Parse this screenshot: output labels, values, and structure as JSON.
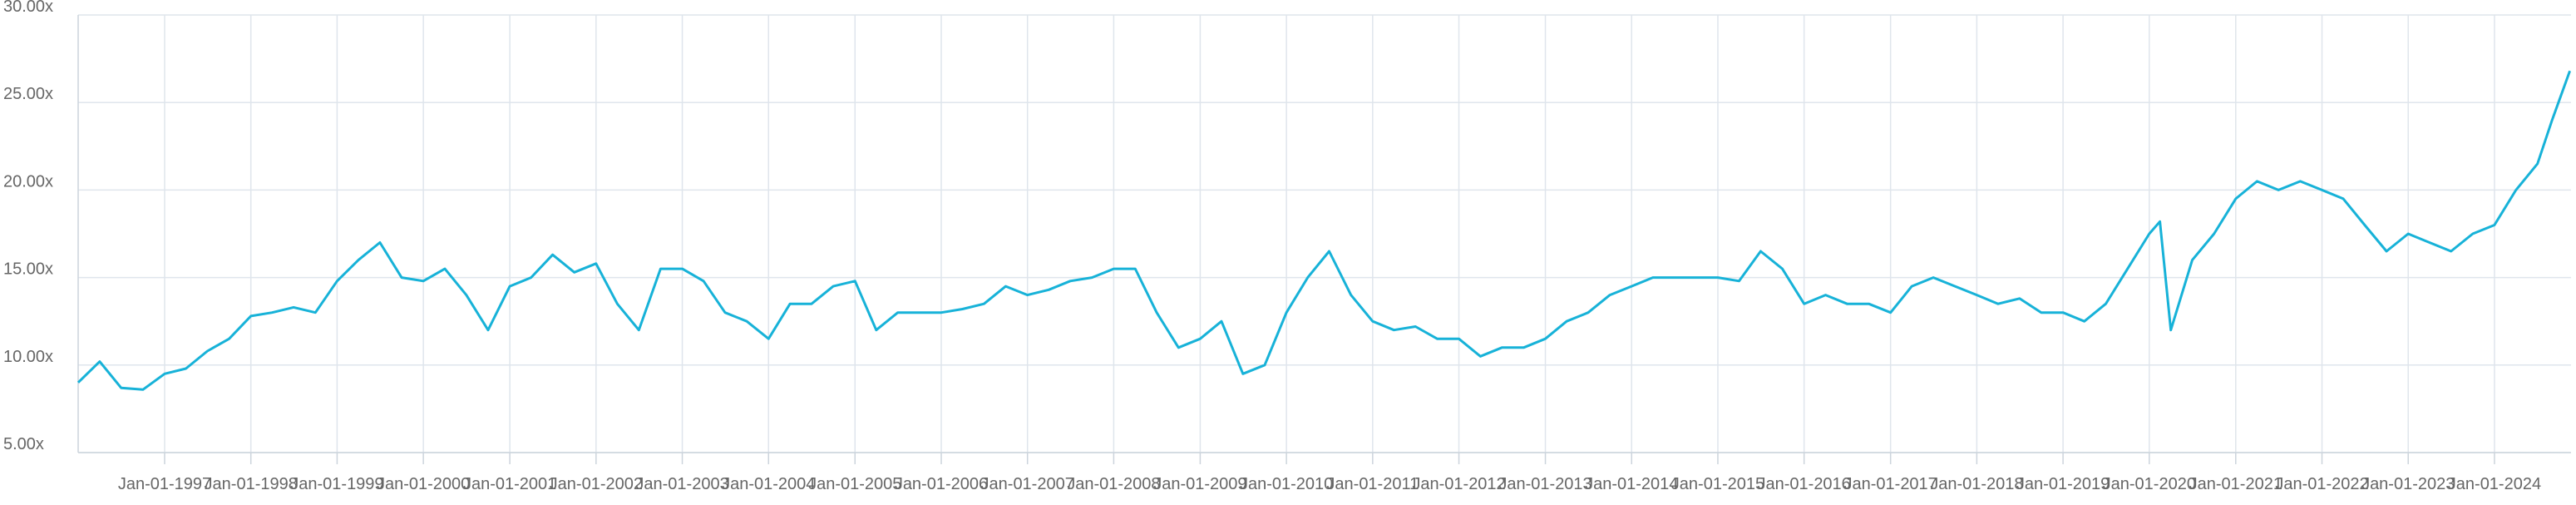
{
  "chart_data": {
    "type": "line",
    "color": "#17b2d8",
    "grid": true,
    "xlim": [
      "1996-01-01",
      "2024-11-20"
    ],
    "ylim": [
      5,
      30
    ],
    "yticks": [
      {
        "value": 5,
        "label": "5.00x"
      },
      {
        "value": 10,
        "label": "10.00x"
      },
      {
        "value": 15,
        "label": "15.00x"
      },
      {
        "value": 20,
        "label": "20.00x"
      },
      {
        "value": 25,
        "label": "25.00x"
      },
      {
        "value": 30,
        "label": "30.00x"
      }
    ],
    "xticks": [
      {
        "value": "1997-01-01",
        "label": "Jan-01-1997"
      },
      {
        "value": "1998-01-01",
        "label": "Jan-01-1998"
      },
      {
        "value": "1999-01-01",
        "label": "Jan-01-1999"
      },
      {
        "value": "2000-01-01",
        "label": "Jan-01-2000"
      },
      {
        "value": "2001-01-01",
        "label": "Jan-01-2001"
      },
      {
        "value": "2002-01-01",
        "label": "Jan-01-2002"
      },
      {
        "value": "2003-01-01",
        "label": "Jan-01-2003"
      },
      {
        "value": "2004-01-01",
        "label": "Jan-01-2004"
      },
      {
        "value": "2005-01-01",
        "label": "Jan-01-2005"
      },
      {
        "value": "2006-01-01",
        "label": "Jan-01-2006"
      },
      {
        "value": "2007-01-01",
        "label": "Jan-01-2007"
      },
      {
        "value": "2008-01-01",
        "label": "Jan-01-2008"
      },
      {
        "value": "2009-01-01",
        "label": "Jan-01-2009"
      },
      {
        "value": "2010-01-01",
        "label": "Jan-01-2010"
      },
      {
        "value": "2011-01-01",
        "label": "Jan-01-2011"
      },
      {
        "value": "2012-01-01",
        "label": "Jan-01-2012"
      },
      {
        "value": "2013-01-01",
        "label": "Jan-01-2013"
      },
      {
        "value": "2014-01-01",
        "label": "Jan-01-2014"
      },
      {
        "value": "2015-01-01",
        "label": "Jan-01-2015"
      },
      {
        "value": "2016-01-01",
        "label": "Jan-01-2016"
      },
      {
        "value": "2017-01-01",
        "label": "Jan-01-2017"
      },
      {
        "value": "2018-01-01",
        "label": "Jan-01-2018"
      },
      {
        "value": "2019-01-01",
        "label": "Jan-01-2019"
      },
      {
        "value": "2020-01-01",
        "label": "Jan-01-2020"
      },
      {
        "value": "2021-01-01",
        "label": "Jan-01-2021"
      },
      {
        "value": "2022-01-01",
        "label": "Jan-01-2022"
      },
      {
        "value": "2023-01-01",
        "label": "Jan-01-2023"
      },
      {
        "value": "2024-01-01",
        "label": "Jan-01-2024"
      }
    ],
    "x": [
      "1996-01-01",
      "1996-04-01",
      "1996-07-01",
      "1996-10-01",
      "1997-01-01",
      "1997-04-01",
      "1997-07-01",
      "1997-10-01",
      "1998-01-01",
      "1998-04-01",
      "1998-07-01",
      "1998-10-01",
      "1999-01-01",
      "1999-04-01",
      "1999-07-01",
      "1999-10-01",
      "2000-01-01",
      "2000-04-01",
      "2000-07-01",
      "2000-10-01",
      "2001-01-01",
      "2001-04-01",
      "2001-07-01",
      "2001-10-01",
      "2002-01-01",
      "2002-04-01",
      "2002-07-01",
      "2002-10-01",
      "2003-01-01",
      "2003-04-01",
      "2003-07-01",
      "2003-10-01",
      "2004-01-01",
      "2004-04-01",
      "2004-07-01",
      "2004-10-01",
      "2005-01-01",
      "2005-04-01",
      "2005-07-01",
      "2005-10-01",
      "2006-01-01",
      "2006-04-01",
      "2006-07-01",
      "2006-10-01",
      "2007-01-01",
      "2007-04-01",
      "2007-07-01",
      "2007-10-01",
      "2008-01-01",
      "2008-04-01",
      "2008-07-01",
      "2008-10-01",
      "2009-01-01",
      "2009-04-01",
      "2009-07-01",
      "2009-10-01",
      "2010-01-01",
      "2010-04-01",
      "2010-07-01",
      "2010-10-01",
      "2011-01-01",
      "2011-04-01",
      "2011-07-01",
      "2011-10-01",
      "2012-01-01",
      "2012-04-01",
      "2012-07-01",
      "2012-10-01",
      "2013-01-01",
      "2013-04-01",
      "2013-07-01",
      "2013-10-01",
      "2014-01-01",
      "2014-04-01",
      "2014-07-01",
      "2014-10-01",
      "2015-01-01",
      "2015-04-01",
      "2015-07-01",
      "2015-10-01",
      "2016-01-01",
      "2016-04-01",
      "2016-07-01",
      "2016-10-01",
      "2017-01-01",
      "2017-04-01",
      "2017-07-01",
      "2017-10-01",
      "2018-01-01",
      "2018-04-01",
      "2018-07-01",
      "2018-10-01",
      "2019-01-01",
      "2019-04-01",
      "2019-07-01",
      "2019-10-01",
      "2020-01-01",
      "2020-02-15",
      "2020-04-01",
      "2020-07-01",
      "2020-10-01",
      "2021-01-01",
      "2021-04-01",
      "2021-07-01",
      "2021-10-01",
      "2022-01-01",
      "2022-04-01",
      "2022-07-01",
      "2022-10-01",
      "2023-01-01",
      "2023-04-01",
      "2023-07-01",
      "2023-10-01",
      "2024-01-01",
      "2024-04-01",
      "2024-07-01",
      "2024-09-01",
      "2024-11-15"
    ],
    "series": [
      {
        "values": [
          9.0,
          10.2,
          8.7,
          8.6,
          9.5,
          9.8,
          10.8,
          11.5,
          12.8,
          13.0,
          13.3,
          13.0,
          14.8,
          16.0,
          17.0,
          15.0,
          14.8,
          15.5,
          14.0,
          12.0,
          14.5,
          15.0,
          16.3,
          15.3,
          15.8,
          13.5,
          12.0,
          15.5,
          15.5,
          14.8,
          13.0,
          12.5,
          11.5,
          13.5,
          13.5,
          14.5,
          14.8,
          12.0,
          13.0,
          13.0,
          13.0,
          13.2,
          13.5,
          14.5,
          14.0,
          14.3,
          14.8,
          15.0,
          15.5,
          15.5,
          13.0,
          11.0,
          11.5,
          12.5,
          9.5,
          10.0,
          13.0,
          15.0,
          16.5,
          14.0,
          12.5,
          12.0,
          12.2,
          11.5,
          11.5,
          10.5,
          11.0,
          11.0,
          11.5,
          12.5,
          13.0,
          14.0,
          14.5,
          15.0,
          15.0,
          15.0,
          15.0,
          14.8,
          16.5,
          15.5,
          13.5,
          14.0,
          13.5,
          13.5,
          13.0,
          14.5,
          15.0,
          14.5,
          14.0,
          13.5,
          13.8,
          13.0,
          13.0,
          12.5,
          13.5,
          15.5,
          17.5,
          18.2,
          12.0,
          16.0,
          17.5,
          19.5,
          20.5,
          20.0,
          20.5,
          20.0,
          19.5,
          18.0,
          16.5,
          17.5,
          17.0,
          16.5,
          17.5,
          18.0,
          20.0,
          21.5,
          24.0,
          26.8
        ]
      }
    ]
  }
}
